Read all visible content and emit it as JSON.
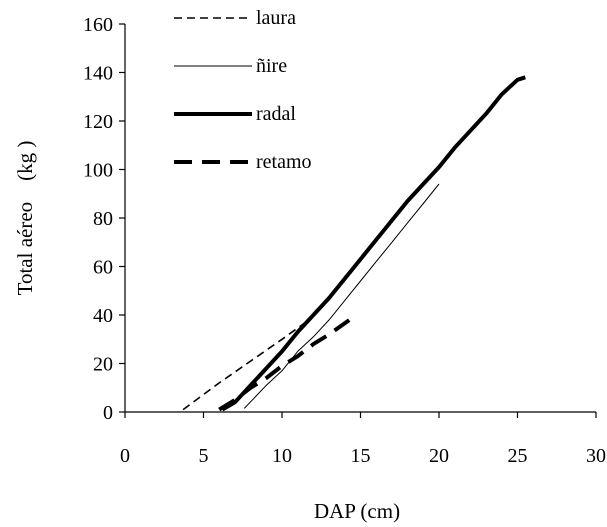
{
  "chart_data": {
    "type": "line",
    "title": "",
    "xlabel": "DAP (cm)",
    "ylabel": "Total aéreo    (kg )",
    "xlim": [
      0,
      30
    ],
    "ylim": [
      0,
      160
    ],
    "xticks": [
      0,
      5,
      10,
      15,
      20,
      25,
      30
    ],
    "yticks": [
      0,
      20,
      40,
      60,
      80,
      100,
      120,
      140,
      160
    ],
    "grid": false,
    "legend": "top-left",
    "series": [
      {
        "name": "laura",
        "style": "short-dash",
        "color": "#000000",
        "x": [
          3.7,
          6,
          8,
          10,
          11.5
        ],
        "y": [
          1,
          12,
          21,
          30,
          37
        ]
      },
      {
        "name": "ñire",
        "style": "thin-solid",
        "color": "#000000",
        "x": [
          7.6,
          9,
          10,
          11,
          12,
          13,
          14,
          15,
          16,
          17,
          18,
          19,
          20
        ],
        "y": [
          1.5,
          11,
          17,
          25,
          31,
          38,
          46,
          54,
          62,
          70,
          78,
          86,
          94
        ]
      },
      {
        "name": "radal",
        "style": "thick-solid",
        "color": "#000000",
        "x": [
          6.2,
          7,
          8,
          9,
          10,
          11,
          12,
          13,
          14,
          15,
          16,
          17,
          18,
          19,
          20,
          21,
          22,
          23,
          24,
          25,
          25.5
        ],
        "y": [
          1,
          4,
          11,
          18,
          25,
          33,
          40,
          47,
          55,
          63,
          71,
          79,
          87,
          94,
          101,
          109,
          116,
          123,
          131,
          137,
          138
        ]
      },
      {
        "name": "retamo",
        "style": "long-dash",
        "color": "#000000",
        "x": [
          6,
          7,
          8,
          9,
          10,
          11,
          12,
          13,
          14.3
        ],
        "y": [
          1,
          5,
          10,
          14,
          19,
          23,
          28,
          32,
          38
        ]
      }
    ]
  }
}
